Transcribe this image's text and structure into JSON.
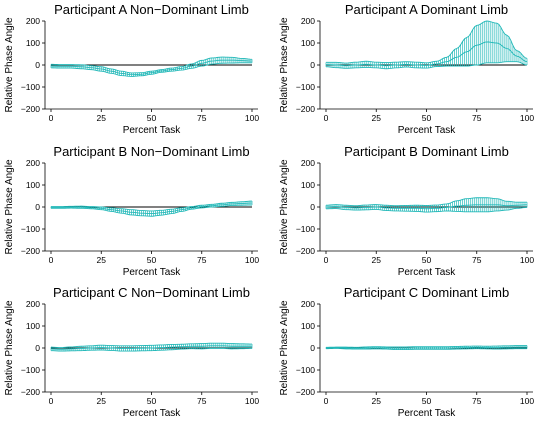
{
  "chart_data": [
    {
      "type": "line",
      "title": "Participant A Non−Dominant Limb",
      "xlabel": "Percent Task",
      "ylabel": "Relative Phase Angle",
      "xlim": [
        0,
        100
      ],
      "ylim": [
        -200,
        200
      ],
      "xticks": [
        "0",
        "25",
        "50",
        "75",
        "100"
      ],
      "yticks": [
        "200",
        "100",
        "0",
        "−100",
        "−200"
      ],
      "grid": false,
      "reference_line": 0,
      "x": [
        0,
        5,
        10,
        15,
        20,
        25,
        30,
        35,
        40,
        45,
        50,
        55,
        60,
        65,
        70,
        75,
        80,
        85,
        90,
        95,
        100
      ],
      "mean": [
        -5,
        -6,
        -6,
        -8,
        -12,
        -18,
        -28,
        -38,
        -44,
        -42,
        -35,
        -27,
        -21,
        -15,
        -5,
        8,
        18,
        22,
        22,
        20,
        18
      ],
      "sd": [
        8,
        8,
        8,
        9,
        9,
        10,
        10,
        10,
        8,
        7,
        7,
        6,
        7,
        8,
        10,
        13,
        14,
        14,
        13,
        10,
        8
      ],
      "color": "#22b8b8"
    },
    {
      "type": "line",
      "title": "Participant A Dominant Limb",
      "xlabel": "Percent Task",
      "ylabel": "Relative Phase Angle",
      "xlim": [
        0,
        100
      ],
      "ylim": [
        -200,
        200
      ],
      "xticks": [
        "0",
        "25",
        "50",
        "75",
        "100"
      ],
      "yticks": [
        "200",
        "100",
        "0",
        "−100",
        "−200"
      ],
      "grid": false,
      "reference_line": 0,
      "x": [
        0,
        5,
        10,
        15,
        20,
        25,
        30,
        35,
        40,
        45,
        50,
        55,
        60,
        65,
        70,
        75,
        80,
        85,
        90,
        95,
        100
      ],
      "mean": [
        2,
        0,
        -3,
        0,
        3,
        0,
        -3,
        0,
        3,
        0,
        -2,
        5,
        15,
        35,
        60,
        90,
        105,
        100,
        75,
        40,
        15
      ],
      "sd": [
        10,
        12,
        12,
        13,
        14,
        13,
        14,
        13,
        12,
        13,
        12,
        12,
        20,
        40,
        65,
        90,
        95,
        90,
        60,
        25,
        15
      ],
      "color": "#22b8b8"
    },
    {
      "type": "line",
      "title": "Participant B Non−Dominant Limb",
      "xlabel": "Percent Task",
      "ylabel": "Relative Phase Angle",
      "xlim": [
        0,
        100
      ],
      "ylim": [
        -200,
        200
      ],
      "xticks": [
        "0",
        "25",
        "50",
        "75",
        "100"
      ],
      "yticks": [
        "200",
        "100",
        "0",
        "−100",
        "−200"
      ],
      "grid": false,
      "reference_line": 0,
      "x": [
        0,
        5,
        10,
        15,
        20,
        25,
        30,
        35,
        40,
        45,
        50,
        55,
        60,
        65,
        70,
        75,
        80,
        85,
        90,
        95,
        100
      ],
      "mean": [
        -2,
        -2,
        -1,
        -1,
        -3,
        -6,
        -12,
        -18,
        -24,
        -28,
        -30,
        -26,
        -20,
        -12,
        -4,
        2,
        6,
        10,
        14,
        16,
        18
      ],
      "sd": [
        4,
        4,
        4,
        5,
        5,
        6,
        8,
        10,
        12,
        12,
        12,
        11,
        10,
        8,
        6,
        6,
        6,
        7,
        7,
        8,
        9
      ],
      "color": "#22b8b8"
    },
    {
      "type": "line",
      "title": "Participant B Dominant Limb",
      "xlabel": "Percent Task",
      "ylabel": "Relative Phase Angle",
      "xlim": [
        0,
        100
      ],
      "ylim": [
        -200,
        200
      ],
      "xticks": [
        "0",
        "25",
        "50",
        "75",
        "100"
      ],
      "yticks": [
        "200",
        "100",
        "0",
        "−100",
        "−200"
      ],
      "grid": false,
      "reference_line": 0,
      "x": [
        0,
        5,
        10,
        15,
        20,
        25,
        30,
        35,
        40,
        45,
        50,
        55,
        60,
        65,
        70,
        75,
        80,
        85,
        90,
        95,
        100
      ],
      "mean": [
        0,
        2,
        -2,
        -4,
        -2,
        0,
        -4,
        -6,
        -6,
        -6,
        -8,
        -6,
        -2,
        4,
        8,
        10,
        10,
        10,
        6,
        8,
        10
      ],
      "sd": [
        8,
        9,
        10,
        10,
        11,
        11,
        12,
        12,
        13,
        14,
        15,
        15,
        16,
        24,
        30,
        32,
        32,
        28,
        20,
        14,
        12
      ],
      "color": "#22b8b8"
    },
    {
      "type": "line",
      "title": "Participant C Non−Dominant Limb",
      "xlabel": "Percent Task",
      "ylabel": "Relative Phase Angle",
      "xlim": [
        0,
        100
      ],
      "ylim": [
        -200,
        200
      ],
      "xticks": [
        "0",
        "25",
        "50",
        "75",
        "100"
      ],
      "yticks": [
        "200",
        "100",
        "0",
        "−100",
        "−200"
      ],
      "grid": false,
      "reference_line": 0,
      "x": [
        0,
        5,
        10,
        15,
        20,
        25,
        30,
        35,
        40,
        45,
        50,
        55,
        60,
        65,
        70,
        75,
        80,
        85,
        90,
        95,
        100
      ],
      "mean": [
        -4,
        -6,
        -4,
        -2,
        0,
        2,
        0,
        -2,
        -2,
        -1,
        0,
        2,
        4,
        6,
        8,
        8,
        10,
        10,
        8,
        8,
        8
      ],
      "sd": [
        8,
        8,
        9,
        10,
        10,
        11,
        11,
        12,
        12,
        12,
        12,
        12,
        12,
        11,
        11,
        12,
        12,
        12,
        12,
        11,
        10
      ],
      "color": "#22b8b8"
    },
    {
      "type": "line",
      "title": "Participant C Dominant Limb",
      "xlabel": "Percent Task",
      "ylabel": "Relative Phase Angle",
      "xlim": [
        0,
        100
      ],
      "ylim": [
        -200,
        200
      ],
      "xticks": [
        "0",
        "25",
        "50",
        "75",
        "100"
      ],
      "yticks": [
        "200",
        "100",
        "0",
        "−100",
        "−200"
      ],
      "grid": false,
      "reference_line": 0,
      "x": [
        0,
        5,
        10,
        15,
        20,
        25,
        30,
        35,
        40,
        45,
        50,
        55,
        60,
        65,
        70,
        75,
        80,
        85,
        90,
        95,
        100
      ],
      "mean": [
        0,
        1,
        0,
        -1,
        0,
        1,
        0,
        -1,
        -1,
        0,
        0,
        0,
        0,
        1,
        2,
        3,
        2,
        2,
        3,
        4,
        4
      ],
      "sd": [
        3,
        3,
        4,
        4,
        5,
        5,
        5,
        6,
        6,
        6,
        6,
        6,
        6,
        6,
        6,
        6,
        6,
        7,
        7,
        7,
        7
      ],
      "color": "#22b8b8"
    }
  ]
}
